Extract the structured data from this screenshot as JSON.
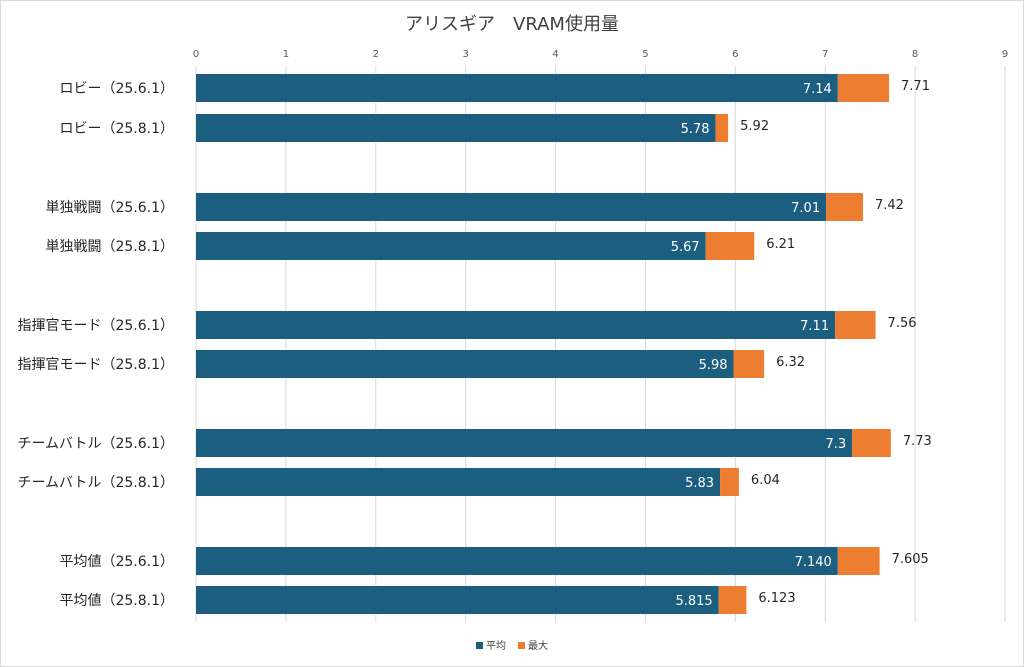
{
  "chart_data": {
    "type": "bar",
    "orientation": "horizontal",
    "title": "アリスギア　VRAM使用量",
    "xlim": [
      0,
      9
    ],
    "x_ticks": [
      "0",
      "1",
      "2",
      "3",
      "4",
      "5",
      "6",
      "7",
      "8",
      "9"
    ],
    "grid": true,
    "legend_position": "bottom",
    "categories": [
      "ロビー（25.6.1）",
      "ロビー（25.8.1）",
      "単独戦闘（25.6.1）",
      "単独戦闘（25.8.1）",
      "指揮官モード（25.6.1）",
      "指揮官モード（25.8.1）",
      "チームバトル（25.6.1）",
      "チームバトル（25.8.1）",
      "平均値（25.6.1）",
      "平均値（25.8.1）"
    ],
    "series": [
      {
        "name": "平均",
        "color": "#1b5e7f",
        "values": [
          7.14,
          5.78,
          7.01,
          5.67,
          7.11,
          5.98,
          7.3,
          5.83,
          7.14,
          5.815
        ],
        "labels": [
          "7.14",
          "5.78",
          "7.01",
          "5.67",
          "7.11",
          "5.98",
          "7.3",
          "5.83",
          "7.140",
          "5.815"
        ]
      },
      {
        "name": "最大",
        "color": "#ed7d31",
        "values": [
          7.71,
          5.92,
          7.42,
          6.21,
          7.56,
          6.32,
          7.73,
          6.04,
          7.605,
          6.123
        ],
        "labels": [
          "7.71",
          "5.92",
          "7.42",
          "6.21",
          "7.56",
          "6.32",
          "7.73",
          "6.04",
          "7.605",
          "6.123"
        ]
      }
    ]
  }
}
